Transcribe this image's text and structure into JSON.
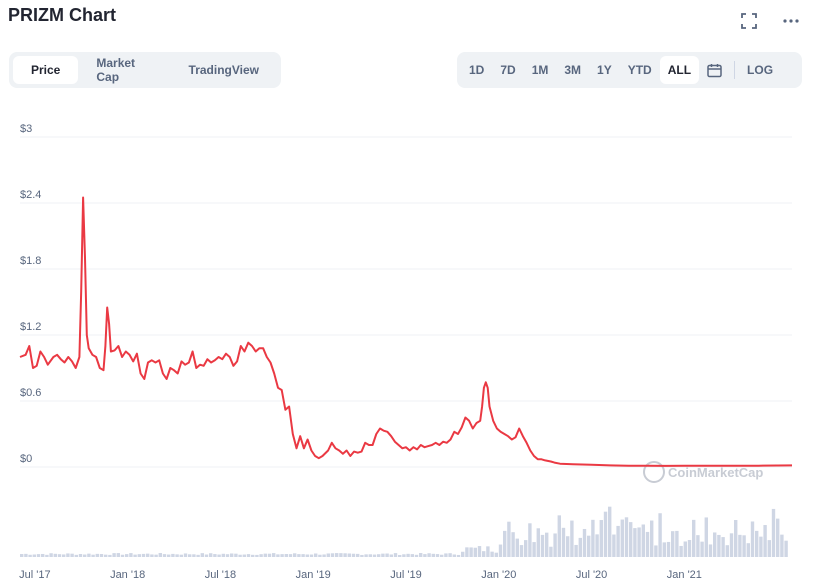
{
  "header": {
    "title": "PRIZM Chart",
    "fullscreen_icon": "expand-icon",
    "more_icon": "more-horizontal-icon"
  },
  "tabs_left": [
    {
      "label": "Price",
      "active": true
    },
    {
      "label": "Market Cap",
      "active": false
    },
    {
      "label": "TradingView",
      "active": false
    }
  ],
  "tabs_right": [
    {
      "label": "1D"
    },
    {
      "label": "7D"
    },
    {
      "label": "1M"
    },
    {
      "label": "3M"
    },
    {
      "label": "1Y"
    },
    {
      "label": "YTD"
    },
    {
      "label": "ALL",
      "active": true
    }
  ],
  "calendar_icon": "calendar-icon",
  "log_label": "LOG",
  "watermark": "CoinMarketCap",
  "colors": {
    "line": "#ea3943",
    "volume": "#cfd6e4",
    "grid": "#eff2f5",
    "tick": "#58667e"
  },
  "chart_data": {
    "type": "line",
    "title": "PRIZM Chart",
    "ylim": [
      0,
      3
    ],
    "y_ticks": [
      "$3",
      "$2.4",
      "$1.8",
      "$1.2",
      "$0.6",
      "$0"
    ],
    "y_tick_values": [
      3,
      2.4,
      1.8,
      1.2,
      0.6,
      0
    ],
    "xlim": [
      2017.42,
      2021.58
    ],
    "x_ticks": [
      "Jul '17",
      "Jan '18",
      "Jul '18",
      "Jan '19",
      "Jul '19",
      "Jan '20",
      "Jul '20",
      "Jan '21"
    ],
    "x_tick_values": [
      2017.5,
      2018.0,
      2018.5,
      2019.0,
      2019.5,
      2020.0,
      2020.5,
      2021.0
    ],
    "grid": true,
    "legend": "none",
    "series": [
      {
        "points": [
          [
            2017.42,
            1.0
          ],
          [
            2017.45,
            1.02
          ],
          [
            2017.47,
            1.1
          ],
          [
            2017.49,
            0.9
          ],
          [
            2017.51,
            0.92
          ],
          [
            2017.53,
            1.05
          ],
          [
            2017.55,
            1.0
          ],
          [
            2017.57,
            0.93
          ],
          [
            2017.6,
            1.0
          ],
          [
            2017.62,
            1.02
          ],
          [
            2017.64,
            0.98
          ],
          [
            2017.66,
            0.95
          ],
          [
            2017.68,
            1.0
          ],
          [
            2017.7,
            0.96
          ],
          [
            2017.72,
            0.9
          ],
          [
            2017.74,
            1.0
          ],
          [
            2017.75,
            1.6
          ],
          [
            2017.76,
            2.45
          ],
          [
            2017.77,
            1.9
          ],
          [
            2017.78,
            1.2
          ],
          [
            2017.79,
            1.08
          ],
          [
            2017.81,
            1.02
          ],
          [
            2017.83,
            1.0
          ],
          [
            2017.85,
            0.9
          ],
          [
            2017.87,
            0.88
          ],
          [
            2017.88,
            1.1
          ],
          [
            2017.89,
            1.45
          ],
          [
            2017.9,
            1.3
          ],
          [
            2017.91,
            1.05
          ],
          [
            2017.93,
            1.06
          ],
          [
            2017.95,
            1.1
          ],
          [
            2017.97,
            1.0
          ],
          [
            2017.99,
            1.05
          ],
          [
            2018.01,
            1.02
          ],
          [
            2018.03,
            0.96
          ],
          [
            2018.05,
            1.03
          ],
          [
            2018.07,
            0.85
          ],
          [
            2018.09,
            0.8
          ],
          [
            2018.11,
            0.95
          ],
          [
            2018.13,
            0.97
          ],
          [
            2018.15,
            0.95
          ],
          [
            2018.17,
            0.97
          ],
          [
            2018.19,
            0.85
          ],
          [
            2018.21,
            0.8
          ],
          [
            2018.23,
            0.9
          ],
          [
            2018.25,
            0.88
          ],
          [
            2018.27,
            0.85
          ],
          [
            2018.29,
            0.96
          ],
          [
            2018.31,
            0.93
          ],
          [
            2018.33,
            0.95
          ],
          [
            2018.35,
            1.05
          ],
          [
            2018.37,
            0.9
          ],
          [
            2018.39,
            0.93
          ],
          [
            2018.41,
            0.92
          ],
          [
            2018.43,
            0.98
          ],
          [
            2018.45,
            0.95
          ],
          [
            2018.47,
            0.97
          ],
          [
            2018.49,
            1.0
          ],
          [
            2018.51,
            0.98
          ],
          [
            2018.53,
            1.03
          ],
          [
            2018.55,
            1.0
          ],
          [
            2018.57,
            0.92
          ],
          [
            2018.59,
            0.96
          ],
          [
            2018.61,
            1.1
          ],
          [
            2018.63,
            1.05
          ],
          [
            2018.65,
            1.13
          ],
          [
            2018.67,
            1.1
          ],
          [
            2018.69,
            1.05
          ],
          [
            2018.71,
            1.08
          ],
          [
            2018.73,
            1.08
          ],
          [
            2018.75,
            1.0
          ],
          [
            2018.77,
            0.95
          ],
          [
            2018.79,
            0.85
          ],
          [
            2018.81,
            0.72
          ],
          [
            2018.83,
            0.7
          ],
          [
            2018.85,
            0.52
          ],
          [
            2018.87,
            0.55
          ],
          [
            2018.89,
            0.3
          ],
          [
            2018.91,
            0.17
          ],
          [
            2018.93,
            0.28
          ],
          [
            2018.95,
            0.17
          ],
          [
            2018.97,
            0.25
          ],
          [
            2018.99,
            0.15
          ],
          [
            2019.01,
            0.1
          ],
          [
            2019.03,
            0.08
          ],
          [
            2019.05,
            0.1
          ],
          [
            2019.08,
            0.15
          ],
          [
            2019.1,
            0.22
          ],
          [
            2019.12,
            0.17
          ],
          [
            2019.14,
            0.15
          ],
          [
            2019.16,
            0.12
          ],
          [
            2019.18,
            0.15
          ],
          [
            2019.2,
            0.1
          ],
          [
            2019.22,
            0.14
          ],
          [
            2019.24,
            0.13
          ],
          [
            2019.26,
            0.14
          ],
          [
            2019.28,
            0.22
          ],
          [
            2019.3,
            0.2
          ],
          [
            2019.32,
            0.2
          ],
          [
            2019.34,
            0.3
          ],
          [
            2019.36,
            0.35
          ],
          [
            2019.38,
            0.33
          ],
          [
            2019.4,
            0.32
          ],
          [
            2019.42,
            0.28
          ],
          [
            2019.44,
            0.23
          ],
          [
            2019.46,
            0.2
          ],
          [
            2019.48,
            0.17
          ],
          [
            2019.5,
            0.18
          ],
          [
            2019.52,
            0.15
          ],
          [
            2019.54,
            0.18
          ],
          [
            2019.56,
            0.16
          ],
          [
            2019.58,
            0.2
          ],
          [
            2019.6,
            0.18
          ],
          [
            2019.62,
            0.19
          ],
          [
            2019.64,
            0.2
          ],
          [
            2019.66,
            0.22
          ],
          [
            2019.68,
            0.2
          ],
          [
            2019.7,
            0.23
          ],
          [
            2019.72,
            0.22
          ],
          [
            2019.74,
            0.25
          ],
          [
            2019.76,
            0.32
          ],
          [
            2019.78,
            0.3
          ],
          [
            2019.8,
            0.36
          ],
          [
            2019.82,
            0.45
          ],
          [
            2019.84,
            0.42
          ],
          [
            2019.86,
            0.35
          ],
          [
            2019.88,
            0.4
          ],
          [
            2019.9,
            0.42
          ],
          [
            2019.91,
            0.55
          ],
          [
            2019.92,
            0.72
          ],
          [
            2019.93,
            0.77
          ],
          [
            2019.94,
            0.72
          ],
          [
            2019.95,
            0.55
          ],
          [
            2019.97,
            0.42
          ],
          [
            2019.99,
            0.35
          ],
          [
            2020.01,
            0.32
          ],
          [
            2020.03,
            0.3
          ],
          [
            2020.05,
            0.28
          ],
          [
            2020.07,
            0.25
          ],
          [
            2020.09,
            0.27
          ],
          [
            2020.11,
            0.35
          ],
          [
            2020.13,
            0.28
          ],
          [
            2020.15,
            0.22
          ],
          [
            2020.17,
            0.15
          ],
          [
            2020.19,
            0.1
          ],
          [
            2020.21,
            0.07
          ],
          [
            2020.23,
            0.07
          ],
          [
            2020.25,
            0.06
          ],
          [
            2020.28,
            0.05
          ],
          [
            2020.3,
            0.04
          ],
          [
            2020.33,
            0.03
          ],
          [
            2020.4,
            0.025
          ],
          [
            2020.5,
            0.02
          ],
          [
            2020.6,
            0.015
          ],
          [
            2020.7,
            0.012
          ],
          [
            2020.8,
            0.012
          ],
          [
            2020.9,
            0.01
          ],
          [
            2021.0,
            0.012
          ],
          [
            2021.1,
            0.011
          ],
          [
            2021.2,
            0.011
          ],
          [
            2021.3,
            0.012
          ],
          [
            2021.4,
            0.012
          ],
          [
            2021.5,
            0.014
          ],
          [
            2021.58,
            0.015
          ]
        ]
      }
    ]
  }
}
